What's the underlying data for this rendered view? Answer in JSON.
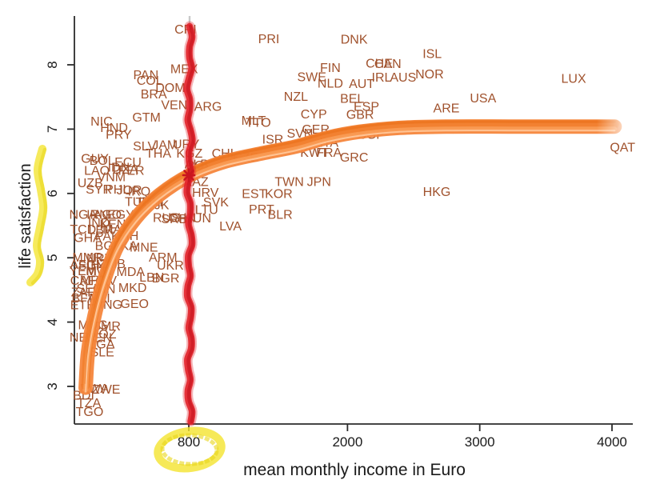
{
  "chart_data": {
    "type": "scatter",
    "title": "",
    "xlabel": "mean monthly income in Euro",
    "ylabel": "life satisfaction",
    "x_ticks": [
      800,
      2000,
      3000,
      4000
    ],
    "y_ticks": [
      3,
      4,
      5,
      6,
      7,
      8
    ],
    "xlim": [
      -80,
      4150
    ],
    "ylim": [
      2.4,
      8.7
    ],
    "grid": false,
    "legend": "none",
    "colors": {
      "country_label": "#A0522D",
      "axis": "#2b2b2b",
      "tick_label": "#1a1a1a",
      "fitted_curve_main": "#F5863C",
      "fitted_curve_dark": "#EE7820",
      "fitted_curve_light": "#FBA25C",
      "fitted_curve_darker": "#E96E16",
      "fitted_curve_pale": "#FFC99C",
      "reference_line_red": "#E3242B",
      "reference_line_red_dark": "#C9151F",
      "reference_underlay_gray": "#C8C8C8",
      "highlighter_yellow": "#F4E42E",
      "highlighter_yellow_dark": "#E8D51A"
    },
    "reference_line": {
      "income": 800,
      "label_circled": "800"
    },
    "annotations": {
      "circled_x_tick": "800",
      "highlighted_axis_label": "life satisfaction",
      "curve_style": "hand-drawn orange marker, fades out at right end",
      "red_line_style": "hand-drawn red crayon vertical line at 800 Euro with asterisk where it crosses the curve"
    },
    "fitted_curve": {
      "points": [
        {
          "income": 20,
          "satisfaction": 2.98
        },
        {
          "income": 38,
          "satisfaction": 3.53
        },
        {
          "income": 86,
          "satisfaction": 4.09
        },
        {
          "income": 160,
          "satisfaction": 4.65
        },
        {
          "income": 260,
          "satisfaction": 5.18
        },
        {
          "income": 400,
          "satisfaction": 5.62
        },
        {
          "income": 580,
          "satisfaction": 5.98
        },
        {
          "income": 805,
          "satisfaction": 6.28
        },
        {
          "income": 1065,
          "satisfaction": 6.49
        },
        {
          "income": 1370,
          "satisfaction": 6.63
        },
        {
          "income": 1610,
          "satisfaction": 6.73
        },
        {
          "income": 1855,
          "satisfaction": 6.87
        },
        {
          "income": 2095,
          "satisfaction": 6.96
        },
        {
          "income": 2395,
          "satisfaction": 7.02
        },
        {
          "income": 2760,
          "satisfaction": 7.04
        },
        {
          "income": 3245,
          "satisfaction": 7.04
        },
        {
          "income": 3670,
          "satisfaction": 7.04
        },
        {
          "income": 4020,
          "satisfaction": 7.04
        }
      ]
    },
    "points": [
      {
        "code": "CRI",
        "income": 775,
        "satisfaction": 8.55
      },
      {
        "code": "PRI",
        "income": 1405,
        "satisfaction": 8.4
      },
      {
        "code": "DNK",
        "income": 2050,
        "satisfaction": 8.39
      },
      {
        "code": "ISL",
        "income": 2640,
        "satisfaction": 8.17
      },
      {
        "code": "MEX",
        "income": 765,
        "satisfaction": 7.93
      },
      {
        "code": "CHE",
        "income": 2240,
        "satisfaction": 8.02
      },
      {
        "code": "CAN",
        "income": 2305,
        "satisfaction": 8.01
      },
      {
        "code": "FIN",
        "income": 1870,
        "satisfaction": 7.95
      },
      {
        "code": "SWE",
        "income": 1730,
        "satisfaction": 7.81
      },
      {
        "code": "IRL",
        "income": 2258,
        "satisfaction": 7.8
      },
      {
        "code": "AUS",
        "income": 2420,
        "satisfaction": 7.8
      },
      {
        "code": "NOR",
        "income": 2620,
        "satisfaction": 7.85
      },
      {
        "code": "PAN",
        "income": 475,
        "satisfaction": 7.84
      },
      {
        "code": "COL",
        "income": 505,
        "satisfaction": 7.75
      },
      {
        "code": "NLD",
        "income": 1870,
        "satisfaction": 7.71
      },
      {
        "code": "AUT",
        "income": 2107,
        "satisfaction": 7.7
      },
      {
        "code": "DOM",
        "income": 660,
        "satisfaction": 7.64
      },
      {
        "code": "BRA",
        "income": 535,
        "satisfaction": 7.54
      },
      {
        "code": "NZL",
        "income": 1610,
        "satisfaction": 7.5
      },
      {
        "code": "USA",
        "income": 3025,
        "satisfaction": 7.48
      },
      {
        "code": "LUX",
        "income": 3710,
        "satisfaction": 7.78
      },
      {
        "code": "BEL",
        "income": 2035,
        "satisfaction": 7.47
      },
      {
        "code": "VEN",
        "income": 690,
        "satisfaction": 7.37
      },
      {
        "code": "ARG",
        "income": 945,
        "satisfaction": 7.35
      },
      {
        "code": "ESP",
        "income": 2143,
        "satisfaction": 7.35
      },
      {
        "code": "ARE",
        "income": 2748,
        "satisfaction": 7.32
      },
      {
        "code": "CYP",
        "income": 1745,
        "satisfaction": 7.23
      },
      {
        "code": "GBR",
        "income": 2095,
        "satisfaction": 7.22
      },
      {
        "code": "GTM",
        "income": 480,
        "satisfaction": 7.18
      },
      {
        "code": "NIC",
        "income": 140,
        "satisfaction": 7.12
      },
      {
        "code": "MLT",
        "income": 1290,
        "satisfaction": 7.13
      },
      {
        "code": "TTO",
        "income": 1325,
        "satisfaction": 7.1
      },
      {
        "code": "HND",
        "income": 235,
        "satisfaction": 7.02
      },
      {
        "code": "GER",
        "income": 1760,
        "satisfaction": 6.99
      },
      {
        "code": "SVN",
        "income": 1640,
        "satisfaction": 6.93
      },
      {
        "code": "PRY",
        "income": 270,
        "satisfaction": 6.91
      },
      {
        "code": "SGP",
        "income": 2180,
        "satisfaction": 6.91
      },
      {
        "code": "ISR",
        "income": 1435,
        "satisfaction": 6.84
      },
      {
        "code": "ITA",
        "income": 1860,
        "satisfaction": 6.79
      },
      {
        "code": "URY",
        "income": 780,
        "satisfaction": 6.76
      },
      {
        "code": "JAM",
        "income": 620,
        "satisfaction": 6.75
      },
      {
        "code": "SLV",
        "income": 465,
        "satisfaction": 6.73
      },
      {
        "code": "QAT",
        "income": 4080,
        "satisfaction": 6.71
      },
      {
        "code": "KWT",
        "income": 1750,
        "satisfaction": 6.63
      },
      {
        "code": "FRA",
        "income": 1860,
        "satisfaction": 6.63
      },
      {
        "code": "THA",
        "income": 570,
        "satisfaction": 6.62
      },
      {
        "code": "KGZ",
        "income": 805,
        "satisfaction": 6.62
      },
      {
        "code": "CHL",
        "income": 1070,
        "satisfaction": 6.62
      },
      {
        "code": "CZE",
        "income": 1230,
        "satisfaction": 6.56
      },
      {
        "code": "GRC",
        "income": 2050,
        "satisfaction": 6.56
      },
      {
        "code": "GUY",
        "income": 90,
        "satisfaction": 6.54
      },
      {
        "code": "BOL",
        "income": 145,
        "satisfaction": 6.51
      },
      {
        "code": "ECU",
        "income": 340,
        "satisfaction": 6.48
      },
      {
        "code": "POL",
        "income": 875,
        "satisfaction": 6.43
      },
      {
        "code": "ALB",
        "income": 860,
        "satisfaction": 6.45
      },
      {
        "code": "IDN",
        "income": 270,
        "satisfaction": 6.4
      },
      {
        "code": "DZA",
        "income": 320,
        "satisfaction": 6.37
      },
      {
        "code": "PER",
        "income": 365,
        "satisfaction": 6.35
      },
      {
        "code": "LAO",
        "income": 105,
        "satisfaction": 6.35
      },
      {
        "code": "VNM",
        "income": 215,
        "satisfaction": 6.25
      },
      {
        "code": "TWN",
        "income": 1560,
        "satisfaction": 6.18
      },
      {
        "code": "JPN",
        "income": 1785,
        "satisfaction": 6.18
      },
      {
        "code": "KAZ",
        "income": 855,
        "satisfaction": 6.18
      },
      {
        "code": "UZB",
        "income": 55,
        "satisfaction": 6.16
      },
      {
        "code": "SYR",
        "income": 120,
        "satisfaction": 6.06
      },
      {
        "code": "PHL",
        "income": 260,
        "satisfaction": 6.06
      },
      {
        "code": "JOR",
        "income": 350,
        "satisfaction": 6.05
      },
      {
        "code": "IRQ",
        "income": 425,
        "satisfaction": 6.03
      },
      {
        "code": "HRV",
        "income": 925,
        "satisfaction": 6.01
      },
      {
        "code": "EST",
        "income": 1295,
        "satisfaction": 5.99
      },
      {
        "code": "KOR",
        "income": 1480,
        "satisfaction": 5.99
      },
      {
        "code": "HKG",
        "income": 2675,
        "satisfaction": 6.02
      },
      {
        "code": "TUR",
        "income": 415,
        "satisfaction": 5.87
      },
      {
        "code": "TKM",
        "income": 500,
        "satisfaction": 5.86
      },
      {
        "code": "TJK",
        "income": 565,
        "satisfaction": 5.82
      },
      {
        "code": "SVK",
        "income": 1005,
        "satisfaction": 5.86
      },
      {
        "code": "LTU",
        "income": 935,
        "satisfaction": 5.74
      },
      {
        "code": "PRT",
        "income": 1350,
        "satisfaction": 5.75
      },
      {
        "code": "BLR",
        "income": 1490,
        "satisfaction": 5.67
      },
      {
        "code": "NGA",
        "income": 0,
        "satisfaction": 5.67
      },
      {
        "code": "IRN",
        "income": 110,
        "satisfaction": 5.67
      },
      {
        "code": "AGO",
        "income": 185,
        "satisfaction": 5.67
      },
      {
        "code": "EGY",
        "income": 285,
        "satisfaction": 5.67
      },
      {
        "code": "RUS",
        "income": 630,
        "satisfaction": 5.62
      },
      {
        "code": "CHN",
        "income": 750,
        "satisfaction": 5.62
      },
      {
        "code": "HUN",
        "income": 865,
        "satisfaction": 5.61
      },
      {
        "code": "SRB",
        "income": 690,
        "satisfaction": 5.6
      },
      {
        "code": "IND",
        "income": 120,
        "satisfaction": 5.54
      },
      {
        "code": "KEN",
        "income": 225,
        "satisfaction": 5.52
      },
      {
        "code": "LVA",
        "income": 1115,
        "satisfaction": 5.49
      },
      {
        "code": "TCD",
        "income": 0,
        "satisfaction": 5.44
      },
      {
        "code": "LBR",
        "income": 135,
        "satisfaction": 5.43
      },
      {
        "code": "MAR",
        "income": 255,
        "satisfaction": 5.44
      },
      {
        "code": "GHA",
        "income": 35,
        "satisfaction": 5.31
      },
      {
        "code": "PAK",
        "income": 185,
        "satisfaction": 5.33
      },
      {
        "code": "BIH",
        "income": 340,
        "satisfaction": 5.34
      },
      {
        "code": "BGD",
        "income": 195,
        "satisfaction": 5.18
      },
      {
        "code": "LKA",
        "income": 320,
        "satisfaction": 5.18
      },
      {
        "code": "MNE",
        "income": 460,
        "satisfaction": 5.16
      },
      {
        "code": "MMR",
        "income": 35,
        "satisfaction": 5.0
      },
      {
        "code": "NPL",
        "income": 120,
        "satisfaction": 4.99
      },
      {
        "code": "ARM",
        "income": 605,
        "satisfaction": 5.0
      },
      {
        "code": "UKR",
        "income": 660,
        "satisfaction": 4.88
      },
      {
        "code": "AFG",
        "income": 0,
        "satisfaction": 4.89
      },
      {
        "code": "HTI",
        "income": 135,
        "satisfaction": 4.89
      },
      {
        "code": "ZMB",
        "income": 220,
        "satisfaction": 4.9
      },
      {
        "code": "SDN",
        "income": 65,
        "satisfaction": 4.87
      },
      {
        "code": "YEM",
        "income": 0,
        "satisfaction": 4.79
      },
      {
        "code": "MWI",
        "income": 120,
        "satisfaction": 4.79
      },
      {
        "code": "MDA",
        "income": 360,
        "satisfaction": 4.78
      },
      {
        "code": "CAF",
        "income": 0,
        "satisfaction": 4.64
      },
      {
        "code": "MRT",
        "income": 80,
        "satisfaction": 4.65
      },
      {
        "code": "CIV",
        "income": 175,
        "satisfaction": 4.64
      },
      {
        "code": "LBN",
        "income": 520,
        "satisfaction": 4.69
      },
      {
        "code": "BGR",
        "income": 625,
        "satisfaction": 4.68
      },
      {
        "code": "SEN",
        "income": 50,
        "satisfaction": 4.52
      },
      {
        "code": "GIN",
        "income": 160,
        "satisfaction": 4.51
      },
      {
        "code": "MKD",
        "income": 375,
        "satisfaction": 4.53
      },
      {
        "code": "ZAF",
        "income": 0,
        "satisfaction": 4.46
      },
      {
        "code": "BFA",
        "income": 5,
        "satisfaction": 4.37
      },
      {
        "code": "MLI",
        "income": 125,
        "satisfaction": 4.37
      },
      {
        "code": "ETH",
        "income": 0,
        "satisfaction": 4.26
      },
      {
        "code": "MNG",
        "income": 185,
        "satisfaction": 4.27
      },
      {
        "code": "GEO",
        "income": 390,
        "satisfaction": 4.28
      },
      {
        "code": "MDG",
        "income": 75,
        "satisfaction": 3.95
      },
      {
        "code": "CMR",
        "income": 175,
        "satisfaction": 3.93
      },
      {
        "code": "MOZ",
        "income": 145,
        "satisfaction": 3.81
      },
      {
        "code": "NER",
        "income": 0,
        "satisfaction": 3.76
      },
      {
        "code": "BEN",
        "income": 120,
        "satisfaction": 3.75
      },
      {
        "code": "UGA",
        "income": 135,
        "satisfaction": 3.65
      },
      {
        "code": "SLE",
        "income": 145,
        "satisfaction": 3.53
      },
      {
        "code": "RWA",
        "income": 85,
        "satisfaction": 2.96
      },
      {
        "code": "ZWE",
        "income": 175,
        "satisfaction": 2.95
      },
      {
        "code": "BDI",
        "income": 5,
        "satisfaction": 2.86
      },
      {
        "code": "TZA",
        "income": 45,
        "satisfaction": 2.74
      },
      {
        "code": "TGO",
        "income": 50,
        "satisfaction": 2.6
      }
    ]
  }
}
